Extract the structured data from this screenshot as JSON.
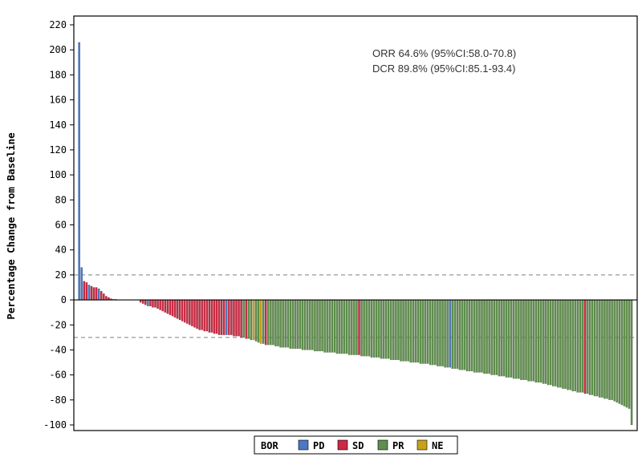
{
  "chart_data": {
    "type": "bar",
    "title": "",
    "xlabel": "",
    "ylabel": "Percentage Change from Baseline",
    "ylim": [
      -100,
      220
    ],
    "yticks": [
      220,
      200,
      180,
      160,
      140,
      120,
      100,
      80,
      60,
      40,
      20,
      0,
      -20,
      -40,
      -60,
      -80,
      -100
    ],
    "reference_lines": [
      20,
      -30
    ],
    "annotations": [
      "ORR 64.6% (95%CI:58.0-70.8)",
      "DCR 89.8% (95%CI:85.1-93.4)"
    ],
    "legend": {
      "title": "BOR",
      "position": "bottom-center",
      "entries": [
        {
          "label": "PD",
          "color": "#4a78c4"
        },
        {
          "label": "SD",
          "color": "#cc2a42"
        },
        {
          "label": "PR",
          "color": "#5f8f4c"
        },
        {
          "label": "NE",
          "color": "#c8a218"
        }
      ]
    },
    "categories": [
      "PD",
      "SD",
      "PR",
      "NE"
    ],
    "bar_groups": [
      {
        "cat": "PD",
        "values": [
          206,
          26
        ]
      },
      {
        "cat": "SD",
        "values": [
          15,
          14
        ]
      },
      {
        "cat": "PD",
        "values": [
          12
        ]
      },
      {
        "cat": "SD",
        "values": [
          11,
          10,
          10
        ]
      },
      {
        "cat": "PD",
        "values": [
          9
        ]
      },
      {
        "cat": "SD",
        "values": [
          7,
          5,
          3,
          2,
          1,
          0.5,
          0.5,
          0.2,
          0,
          0,
          0,
          0,
          0,
          0,
          0,
          0
        ]
      },
      {
        "cat": "SD",
        "values": [
          -2,
          -3,
          -4
        ]
      },
      {
        "cat": "PD",
        "values": [
          -5
        ]
      },
      {
        "cat": "SD",
        "values": [
          -5,
          -6,
          -6,
          -7,
          -8,
          -9,
          -10,
          -11,
          -12,
          -13,
          -14,
          -15,
          -16,
          -17,
          -18,
          -19,
          -20,
          -21,
          -22,
          -23,
          -24,
          -24,
          -25,
          -25,
          -26,
          -26,
          -27,
          -27,
          -28,
          -28,
          -28
        ]
      },
      {
        "cat": "PD",
        "values": [
          -28
        ]
      },
      {
        "cat": "SD",
        "values": [
          -28,
          -28,
          -29,
          -29,
          -29,
          -30
        ]
      },
      {
        "cat": "PR",
        "values": [
          -30
        ]
      },
      {
        "cat": "SD",
        "values": [
          -31
        ]
      },
      {
        "cat": "PR",
        "values": [
          -31,
          -32
        ]
      },
      {
        "cat": "NE",
        "values": [
          -32
        ]
      },
      {
        "cat": "PR",
        "values": [
          -33,
          -34
        ]
      },
      {
        "cat": "NE",
        "values": [
          -35
        ]
      },
      {
        "cat": "PR",
        "values": [
          -35
        ]
      },
      {
        "cat": "SD",
        "values": [
          -36
        ]
      },
      {
        "cat": "PR",
        "values": [
          -36,
          -36,
          -36,
          -37,
          -37,
          -38,
          -38,
          -38,
          -38,
          -39,
          -39,
          -39,
          -39,
          -39,
          -40,
          -40,
          -40,
          -40,
          -40,
          -41,
          -41,
          -41,
          -41,
          -42,
          -42,
          -42,
          -42,
          -42,
          -43,
          -43,
          -43,
          -43,
          -43,
          -44,
          -44,
          -44,
          -44
        ]
      },
      {
        "cat": "SD",
        "values": [
          -44
        ]
      },
      {
        "cat": "PR",
        "values": [
          -45,
          -45,
          -45,
          -45,
          -46,
          -46,
          -46,
          -46,
          -47,
          -47,
          -47,
          -47,
          -48,
          -48,
          -48,
          -48,
          -49,
          -49,
          -49,
          -49,
          -50,
          -50,
          -50,
          -50,
          -51,
          -51,
          -51,
          -51,
          -52,
          -52,
          -52,
          -53,
          -53,
          -53,
          -54,
          -54
        ]
      },
      {
        "cat": "PD",
        "values": [
          -54
        ]
      },
      {
        "cat": "PR",
        "values": [
          -55,
          -55,
          -55,
          -56,
          -56,
          -56,
          -57,
          -57,
          -57,
          -58,
          -58,
          -58,
          -58,
          -59,
          -59,
          -59,
          -60,
          -60,
          -60,
          -61,
          -61,
          -61,
          -62,
          -62,
          -62,
          -63,
          -63,
          -63,
          -64,
          -64,
          -64,
          -65,
          -65,
          -65,
          -66,
          -66,
          -66,
          -67,
          -67,
          -68,
          -68,
          -69,
          -69,
          -70,
          -70,
          -71,
          -71,
          -72,
          -72,
          -73,
          -73,
          -74,
          -74,
          -74
        ]
      },
      {
        "cat": "SD",
        "values": [
          -75
        ]
      },
      {
        "cat": "PR",
        "values": [
          -75,
          -76,
          -76,
          -77,
          -77,
          -78,
          -78,
          -79,
          -79,
          -80,
          -80,
          -81,
          -82,
          -83,
          -84,
          -85,
          -86,
          -87,
          -100
        ]
      }
    ]
  }
}
